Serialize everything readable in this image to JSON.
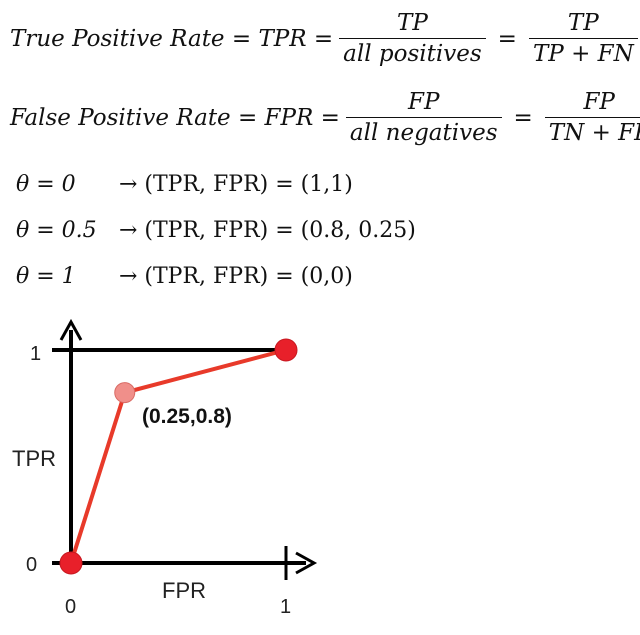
{
  "formulas": {
    "tpr": {
      "lhs": "True Positive Rate = TPR =",
      "frac1": {
        "num": "TP",
        "den": "all positives"
      },
      "frac2": {
        "num": "TP",
        "den": "TP + FN"
      }
    },
    "fpr": {
      "lhs": "False Positive Rate = FPR =",
      "frac1": {
        "num": "FP",
        "den": "all negatives"
      },
      "frac2": {
        "num": "FP",
        "den": "TN + FP"
      }
    }
  },
  "thresholds": [
    {
      "lhs": "θ = 0",
      "rhs": "→ (TPR, FPR) = (1,1)"
    },
    {
      "lhs": "θ = 0.5",
      "rhs": "→ (TPR, FPR) = (0.8, 0.25)"
    },
    {
      "lhs": "θ = 1",
      "rhs": "→ (TPR, FPR) = (0,0)"
    }
  ],
  "diagram": {
    "ylabel": "TPR",
    "xlabel": "FPR",
    "y_tick_top": "1",
    "y_tick_bottom": "0",
    "x_tick_left": "0",
    "x_tick_right": "1",
    "point_label": "(0.25,0.8)",
    "line_color": "#e83a2a",
    "point_color": "#e8202a",
    "mid_point_color": "#f08f8a",
    "points": [
      {
        "x": 0,
        "y": 0
      },
      {
        "x": 0.25,
        "y": 0.8
      },
      {
        "x": 1,
        "y": 1
      }
    ]
  }
}
